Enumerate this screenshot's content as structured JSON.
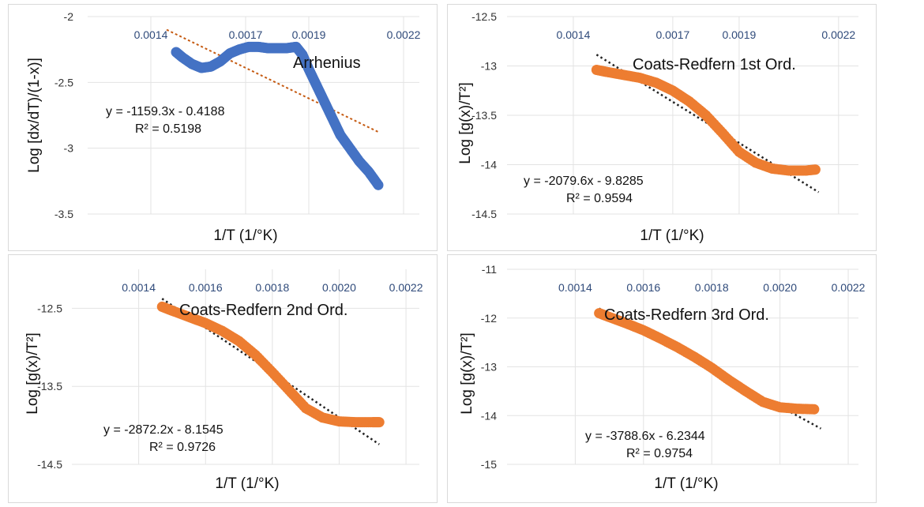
{
  "colors": {
    "blue": "#4472c4",
    "orange": "#ed7d31",
    "trend_dotted": "#222222",
    "trend_orange": "#c55a11",
    "tick_x": "#2f4a7a"
  },
  "chart_data": [
    {
      "type": "scatter",
      "title": "Arrhenius",
      "xlabel": "1/T (1/°K)",
      "ylabel": "Log [dx/dT)/(1-x)]",
      "xlim": [
        0.0012,
        0.00225
      ],
      "ylim": [
        -3.5,
        -2
      ],
      "x_ticks": [
        "0.0014",
        "0.0017",
        "0.0019",
        "0.0022"
      ],
      "x_tick_values": [
        0.0014,
        0.0017,
        0.0019,
        0.0022
      ],
      "y_ticks": [
        "-2",
        "-2.5",
        "-3",
        "-3.5"
      ],
      "y_tick_values": [
        -2,
        -2.5,
        -3,
        -3.5
      ],
      "series_color": "#4472c4",
      "trend_color": "#c55a11",
      "trend_x": [
        0.00145,
        0.00212
      ],
      "x": [
        0.00148,
        0.0015,
        0.00153,
        0.00156,
        0.00159,
        0.00162,
        0.00165,
        0.00168,
        0.00171,
        0.00174,
        0.00177,
        0.0018,
        0.00183,
        0.00186,
        0.00188,
        0.0019,
        0.00192,
        0.00194,
        0.00196,
        0.00198,
        0.002,
        0.00203,
        0.00206,
        0.00209,
        0.00212
      ],
      "y": [
        -2.27,
        -2.31,
        -2.36,
        -2.39,
        -2.38,
        -2.34,
        -2.28,
        -2.25,
        -2.23,
        -2.23,
        -2.24,
        -2.24,
        -2.24,
        -2.23,
        -2.29,
        -2.4,
        -2.5,
        -2.6,
        -2.7,
        -2.8,
        -2.9,
        -3.0,
        -3.1,
        -3.18,
        -3.28
      ],
      "equation": "y = -1159.3x - 0.4188",
      "r2": "R² = 0.5198",
      "slope": -1159.3,
      "intercept": -0.4188
    },
    {
      "type": "scatter",
      "title": "Coats-Redfern  1st Ord.",
      "xlabel": "1/T (1/°K)",
      "ylabel": "Log [g(x)/T²]",
      "xlim": [
        0.0012,
        0.00226
      ],
      "ylim": [
        -14.5,
        -12.5
      ],
      "x_ticks": [
        "0.0014",
        "0.0017",
        "0.0019",
        "0.0022"
      ],
      "x_tick_values": [
        0.0014,
        0.0017,
        0.0019,
        0.0022
      ],
      "y_ticks": [
        "-12.5",
        "-13",
        "-13.5",
        "-14",
        "-14.5"
      ],
      "y_tick_values": [
        -12.5,
        -13,
        -13.5,
        -14,
        -14.5
      ],
      "series_color": "#ed7d31",
      "trend_color": "#222222",
      "trend_x": [
        0.00147,
        0.00214
      ],
      "x": [
        0.00147,
        0.0015,
        0.00155,
        0.0016,
        0.00165,
        0.0017,
        0.00175,
        0.0018,
        0.00185,
        0.0019,
        0.00195,
        0.002,
        0.00205,
        0.0021,
        0.00213
      ],
      "y": [
        -13.04,
        -13.06,
        -13.09,
        -13.12,
        -13.17,
        -13.25,
        -13.36,
        -13.5,
        -13.68,
        -13.87,
        -13.98,
        -14.04,
        -14.06,
        -14.06,
        -14.05
      ],
      "equation": "y = -2079.6x - 9.8285",
      "r2": "R² = 0.9594",
      "slope": -2079.6,
      "intercept": -9.8285
    },
    {
      "type": "scatter",
      "title": "Coats-Redfern  2nd Ord.",
      "xlabel": "1/T (1/°K)",
      "ylabel": "Log [g(x)/T²]",
      "xlim": [
        0.0012,
        0.00224
      ],
      "ylim": [
        -14.5,
        -12
      ],
      "x_ticks": [
        "0.0014",
        "0.0016",
        "0.0018",
        "0.0020",
        "0.0022"
      ],
      "x_tick_values": [
        0.0014,
        0.0016,
        0.0018,
        0.002,
        0.0022
      ],
      "y_ticks": [
        "-12.5",
        "-13.5",
        "-14.5"
      ],
      "y_tick_values": [
        -12.5,
        -13.5,
        -14.5
      ],
      "series_color": "#ed7d31",
      "trend_color": "#222222",
      "trend_x": [
        0.00147,
        0.00212
      ],
      "x": [
        0.00147,
        0.0015,
        0.00155,
        0.0016,
        0.00165,
        0.0017,
        0.00175,
        0.0018,
        0.00185,
        0.0019,
        0.00195,
        0.002,
        0.00205,
        0.0021,
        0.00212
      ],
      "y": [
        -12.48,
        -12.53,
        -12.61,
        -12.69,
        -12.79,
        -12.92,
        -13.1,
        -13.32,
        -13.55,
        -13.78,
        -13.9,
        -13.95,
        -13.96,
        -13.96,
        -13.96
      ],
      "equation": "y = -2872.2x - 8.1545",
      "r2": "R² = 0.9726",
      "slope": -2872.2,
      "intercept": -8.1545
    },
    {
      "type": "scatter",
      "title": "Coats-Redfern  3rd Ord.",
      "xlabel": "1/T (1/°K)",
      "ylabel": "Log [g(x)/T²]",
      "xlim": [
        0.0012,
        0.00223
      ],
      "ylim": [
        -15,
        -11
      ],
      "x_ticks": [
        "0.0014",
        "0.0016",
        "0.0018",
        "0.0020",
        "0.0022"
      ],
      "x_tick_values": [
        0.0014,
        0.0016,
        0.0018,
        0.002,
        0.0022
      ],
      "y_ticks": [
        "-11",
        "-12",
        "-13",
        "-14",
        "-15"
      ],
      "y_tick_values": [
        -11,
        -12,
        -13,
        -14,
        -15
      ],
      "series_color": "#ed7d31",
      "trend_color": "#222222",
      "trend_x": [
        0.00147,
        0.00212
      ],
      "x": [
        0.00147,
        0.0015,
        0.00155,
        0.0016,
        0.00165,
        0.0017,
        0.00175,
        0.0018,
        0.00185,
        0.0019,
        0.00195,
        0.002,
        0.00205,
        0.0021
      ],
      "y": [
        -11.9,
        -11.98,
        -12.11,
        -12.25,
        -12.42,
        -12.6,
        -12.8,
        -13.02,
        -13.27,
        -13.5,
        -13.72,
        -13.83,
        -13.86,
        -13.87
      ],
      "equation": "y = -3788.6x - 6.2344",
      "r2": "R² = 0.9754",
      "slope": -3788.6,
      "intercept": -6.2344
    }
  ]
}
